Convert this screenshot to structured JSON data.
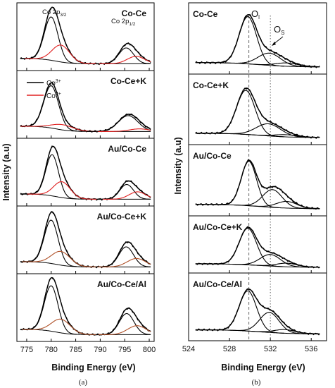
{
  "panel_labels": [
    "(a)",
    "(b)"
  ],
  "chart_data": [
    {
      "type": "line",
      "panel": "(a)",
      "xlabel": "Binding Energy (eV)",
      "ylabel": "Intensity (a.u)",
      "xlim": [
        773,
        801
      ],
      "xticks": [
        "775",
        "780",
        "785",
        "790",
        "795",
        "800"
      ],
      "grid": false,
      "legend": {
        "placement": "top-left of second subplot",
        "entries": [
          {
            "base": "Co",
            "sup": "3+",
            "color": "#000000"
          },
          {
            "base": "Co",
            "sup": "2+",
            "color": "#e02020"
          }
        ]
      },
      "annotations": [
        {
          "base": "Co 2p",
          "sub": "3/2",
          "x": 780.0
        },
        {
          "base": "Co 2p",
          "sub": "1/2",
          "x": 795.5
        }
      ],
      "subplots": [
        {
          "label": "Co-Ce",
          "color_co2": "#e02020",
          "peaks": [
            {
              "species": "Co3+",
              "center": 780.0,
              "height": 0.82,
              "width": 1.4
            },
            {
              "species": "Co2+",
              "center": 782.0,
              "height": 0.32,
              "width": 1.8
            },
            {
              "species": "Co3+",
              "center": 795.3,
              "height": 0.3,
              "width": 1.5
            },
            {
              "species": "Co2+",
              "center": 797.3,
              "height": 0.14,
              "width": 1.8
            }
          ]
        },
        {
          "label": "Co-Ce+K",
          "color_co2": "#e02020",
          "peaks": [
            {
              "species": "Co3+",
              "center": 780.0,
              "height": 0.8,
              "width": 1.5
            },
            {
              "species": "Co2+",
              "center": 782.3,
              "height": 0.1,
              "width": 2.2
            },
            {
              "species": "Co3+",
              "center": 795.7,
              "height": 0.3,
              "width": 2.0
            },
            {
              "species": "Co2+",
              "center": 798.0,
              "height": 0.05,
              "width": 2.0
            }
          ]
        },
        {
          "label": "Au/Co-Ce",
          "color_co2": "#e02020",
          "peaks": [
            {
              "species": "Co3+",
              "center": 780.2,
              "height": 0.78,
              "width": 1.3
            },
            {
              "species": "Co2+",
              "center": 782.2,
              "height": 0.3,
              "width": 1.7
            },
            {
              "species": "Co3+",
              "center": 795.4,
              "height": 0.28,
              "width": 1.4
            },
            {
              "species": "Co2+",
              "center": 797.6,
              "height": 0.14,
              "width": 1.7
            }
          ]
        },
        {
          "label": "Au/Co-Ce+K",
          "color_co2": "#b0522a",
          "peaks": [
            {
              "species": "Co3+",
              "center": 780.0,
              "height": 0.82,
              "width": 1.4
            },
            {
              "species": "Co2+",
              "center": 782.0,
              "height": 0.26,
              "width": 1.9
            },
            {
              "species": "Co3+",
              "center": 795.3,
              "height": 0.38,
              "width": 1.5
            },
            {
              "species": "Co2+",
              "center": 797.4,
              "height": 0.16,
              "width": 1.9
            }
          ]
        },
        {
          "label": "Au/Co-Ce/Al",
          "color_co2": "#b0522a",
          "peaks": [
            {
              "species": "Co3+",
              "center": 780.0,
              "height": 0.86,
              "width": 1.4
            },
            {
              "species": "Co2+",
              "center": 782.0,
              "height": 0.26,
              "width": 1.9
            },
            {
              "species": "Co3+",
              "center": 795.4,
              "height": 0.4,
              "width": 1.5
            },
            {
              "species": "Co2+",
              "center": 797.5,
              "height": 0.17,
              "width": 1.9
            }
          ]
        }
      ]
    },
    {
      "type": "line",
      "panel": "(b)",
      "xlabel": "Binding Energy (eV)",
      "ylabel": "Intensity (a.u)",
      "xlim": [
        524,
        537.5
      ],
      "xticks": [
        "524",
        "528",
        "532",
        "536"
      ],
      "grid": false,
      "annotations": [
        {
          "base": "O",
          "sub": "l",
          "x": 529.9
        },
        {
          "base": "O",
          "sub": "S",
          "x": 532.0
        }
      ],
      "reference_lines": [
        529.9,
        532.0
      ],
      "subplots": [
        {
          "label": "Co-Ce",
          "peaks": [
            {
              "species": "OI",
              "center": 529.8,
              "height": 0.85,
              "width": 0.85
            },
            {
              "species": "OS",
              "center": 531.9,
              "height": 0.22,
              "width": 1.1
            },
            {
              "species": "OS2",
              "center": 533.6,
              "height": 0.06,
              "width": 1.1
            }
          ]
        },
        {
          "label": "Co-Ce+K",
          "peaks": [
            {
              "species": "OI",
              "center": 529.6,
              "height": 0.8,
              "width": 0.9
            },
            {
              "species": "OS",
              "center": 531.8,
              "height": 0.22,
              "width": 1.2
            },
            {
              "species": "OS2",
              "center": 533.5,
              "height": 0.04,
              "width": 1.1
            }
          ]
        },
        {
          "label": "Au/Co-Ce",
          "peaks": [
            {
              "species": "OI",
              "center": 529.9,
              "height": 0.8,
              "width": 0.75
            },
            {
              "species": "OS",
              "center": 532.2,
              "height": 0.32,
              "width": 0.95
            },
            {
              "species": "OS2",
              "center": 533.6,
              "height": 0.12,
              "width": 1.0
            }
          ]
        },
        {
          "label": "Au/Co-Ce+K",
          "peaks": [
            {
              "species": "OI",
              "center": 529.8,
              "height": 0.82,
              "width": 0.85
            },
            {
              "species": "OS",
              "center": 532.0,
              "height": 0.26,
              "width": 1.0
            },
            {
              "species": "OS2",
              "center": 533.6,
              "height": 0.08,
              "width": 1.0
            }
          ]
        },
        {
          "label": "Au/Co-Ce/Al",
          "peaks": [
            {
              "species": "OI",
              "center": 529.8,
              "height": 0.76,
              "width": 0.85
            },
            {
              "species": "OS",
              "center": 531.9,
              "height": 0.38,
              "width": 0.95
            },
            {
              "species": "OS2",
              "center": 533.4,
              "height": 0.07,
              "width": 1.0
            }
          ]
        }
      ]
    }
  ]
}
